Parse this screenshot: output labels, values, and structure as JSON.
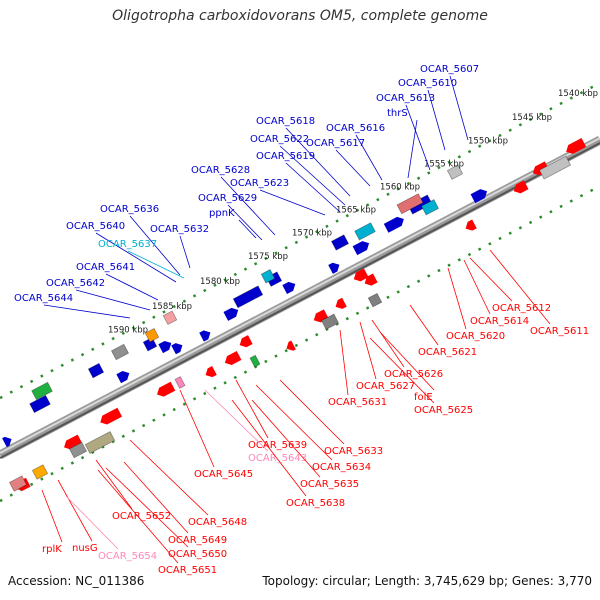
{
  "title": "Oligotropha carboxidovorans OM5, complete genome",
  "accession": "Accession: NC_011386",
  "stats": "Topology: circular; Length: 3,745,629 bp; Genes: 3,770",
  "colors": {
    "forward": "#0000cc",
    "reverse": "#ff0000",
    "rna_forward": "#00b0d0",
    "rna_reverse": "#ff88bb",
    "backbone": "#808080",
    "tick": "#2e8b2e"
  },
  "kbp_marks": [
    "1540 kbp",
    "1545 kbp",
    "1550 kbp",
    "1555 kbp",
    "1560 kbp",
    "1565 kbp",
    "1570 kbp",
    "1575 kbp",
    "1580 kbp",
    "1585 kbp",
    "1590 kbp"
  ],
  "upper_labels": [
    {
      "text": "OCAR_5607",
      "kind": "fwd"
    },
    {
      "text": "OCAR_5610",
      "kind": "fwd"
    },
    {
      "text": "OCAR_5613",
      "kind": "fwd"
    },
    {
      "text": "thrS",
      "kind": "fwd"
    },
    {
      "text": "OCAR_5616",
      "kind": "fwd"
    },
    {
      "text": "OCAR_5617",
      "kind": "fwd"
    },
    {
      "text": "OCAR_5618",
      "kind": "fwd"
    },
    {
      "text": "OCAR_5622",
      "kind": "fwd"
    },
    {
      "text": "OCAR_5619",
      "kind": "fwd"
    },
    {
      "text": "OCAR_5628",
      "kind": "fwd"
    },
    {
      "text": "OCAR_5623",
      "kind": "fwd"
    },
    {
      "text": "OCAR_5629",
      "kind": "fwd"
    },
    {
      "text": "ppnK",
      "kind": "fwd"
    },
    {
      "text": "OCAR_5636",
      "kind": "fwd"
    },
    {
      "text": "OCAR_5640",
      "kind": "fwd"
    },
    {
      "text": "OCAR_5632",
      "kind": "fwd"
    },
    {
      "text": "OCAR_5637",
      "kind": "rna"
    },
    {
      "text": "OCAR_5641",
      "kind": "fwd"
    },
    {
      "text": "OCAR_5642",
      "kind": "fwd"
    },
    {
      "text": "OCAR_5644",
      "kind": "fwd"
    }
  ],
  "lower_labels": [
    {
      "text": "OCAR_5612",
      "kind": "rev"
    },
    {
      "text": "OCAR_5614",
      "kind": "rev"
    },
    {
      "text": "OCAR_5611",
      "kind": "rev"
    },
    {
      "text": "OCAR_5620",
      "kind": "rev"
    },
    {
      "text": "OCAR_5621",
      "kind": "rev"
    },
    {
      "text": "OCAR_5626",
      "kind": "rev"
    },
    {
      "text": "OCAR_5627",
      "kind": "rev"
    },
    {
      "text": "folE",
      "kind": "rev"
    },
    {
      "text": "OCAR_5631",
      "kind": "rev"
    },
    {
      "text": "OCAR_5625",
      "kind": "rev"
    },
    {
      "text": "OCAR_5633",
      "kind": "rev"
    },
    {
      "text": "OCAR_5639",
      "kind": "rev"
    },
    {
      "text": "OCAR_5643",
      "kind": "rna"
    },
    {
      "text": "OCAR_5634",
      "kind": "rev"
    },
    {
      "text": "OCAR_5645",
      "kind": "rev"
    },
    {
      "text": "OCAR_5635",
      "kind": "rev"
    },
    {
      "text": "OCAR_5638",
      "kind": "rev"
    },
    {
      "text": "OCAR_5652",
      "kind": "rev"
    },
    {
      "text": "OCAR_5648",
      "kind": "rev"
    },
    {
      "text": "OCAR_5649",
      "kind": "rev"
    },
    {
      "text": "rplK",
      "kind": "rev"
    },
    {
      "text": "nusG",
      "kind": "rev"
    },
    {
      "text": "OCAR_5650",
      "kind": "rev"
    },
    {
      "text": "OCAR_5654",
      "kind": "rna"
    },
    {
      "text": "OCAR_5651",
      "kind": "rev"
    }
  ]
}
